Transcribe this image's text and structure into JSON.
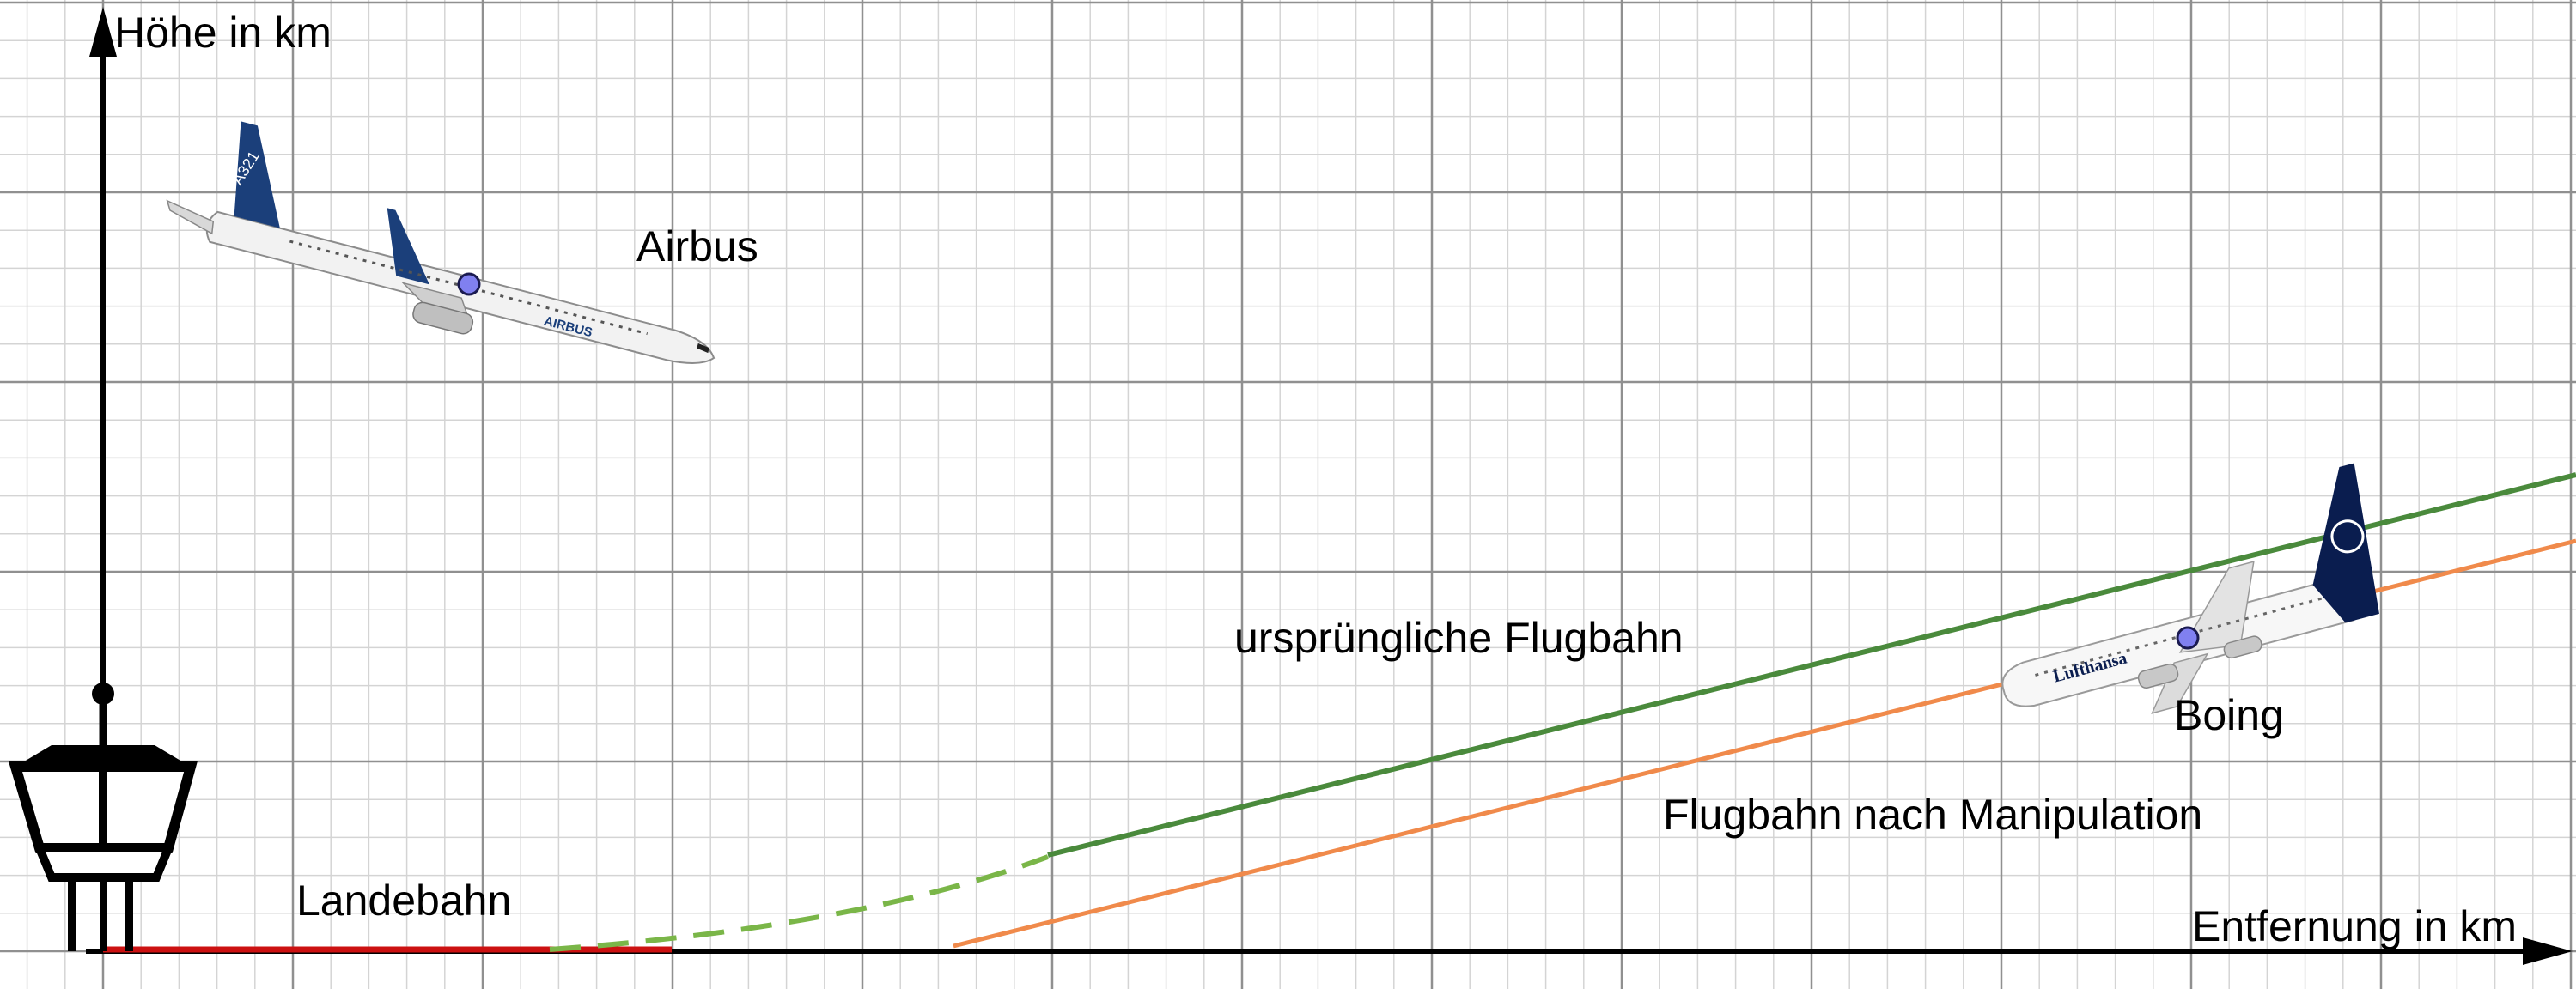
{
  "axes": {
    "y_label": "Höhe in km",
    "x_label": "Entfernung in km"
  },
  "labels": {
    "airbus": "Airbus",
    "boeing": "Boing",
    "original_path": "ursprüngliche Flugbahn",
    "manipulated_path": "Flugbahn nach Manipulation",
    "runway": "Landebahn"
  },
  "aircraft": {
    "airbus_tail_text": "A321",
    "airbus_fuselage_text": "AIRBUS",
    "boeing_fuselage_text": "Lufthansa"
  },
  "colors": {
    "original_path": "#4a8a3c",
    "original_path_dashed": "#7ab648",
    "manipulated_path": "#f08a4b",
    "runway": "#cc1111",
    "marker": "#8080f0",
    "grid_major": "#909090",
    "grid_minor": "#d4d4d4",
    "airbus_blue": "#1b3f7a",
    "lufthansa_blue": "#0a1d4f"
  },
  "icons": [
    "control-tower-icon",
    "airbus-plane-icon",
    "boeing-plane-icon"
  ]
}
